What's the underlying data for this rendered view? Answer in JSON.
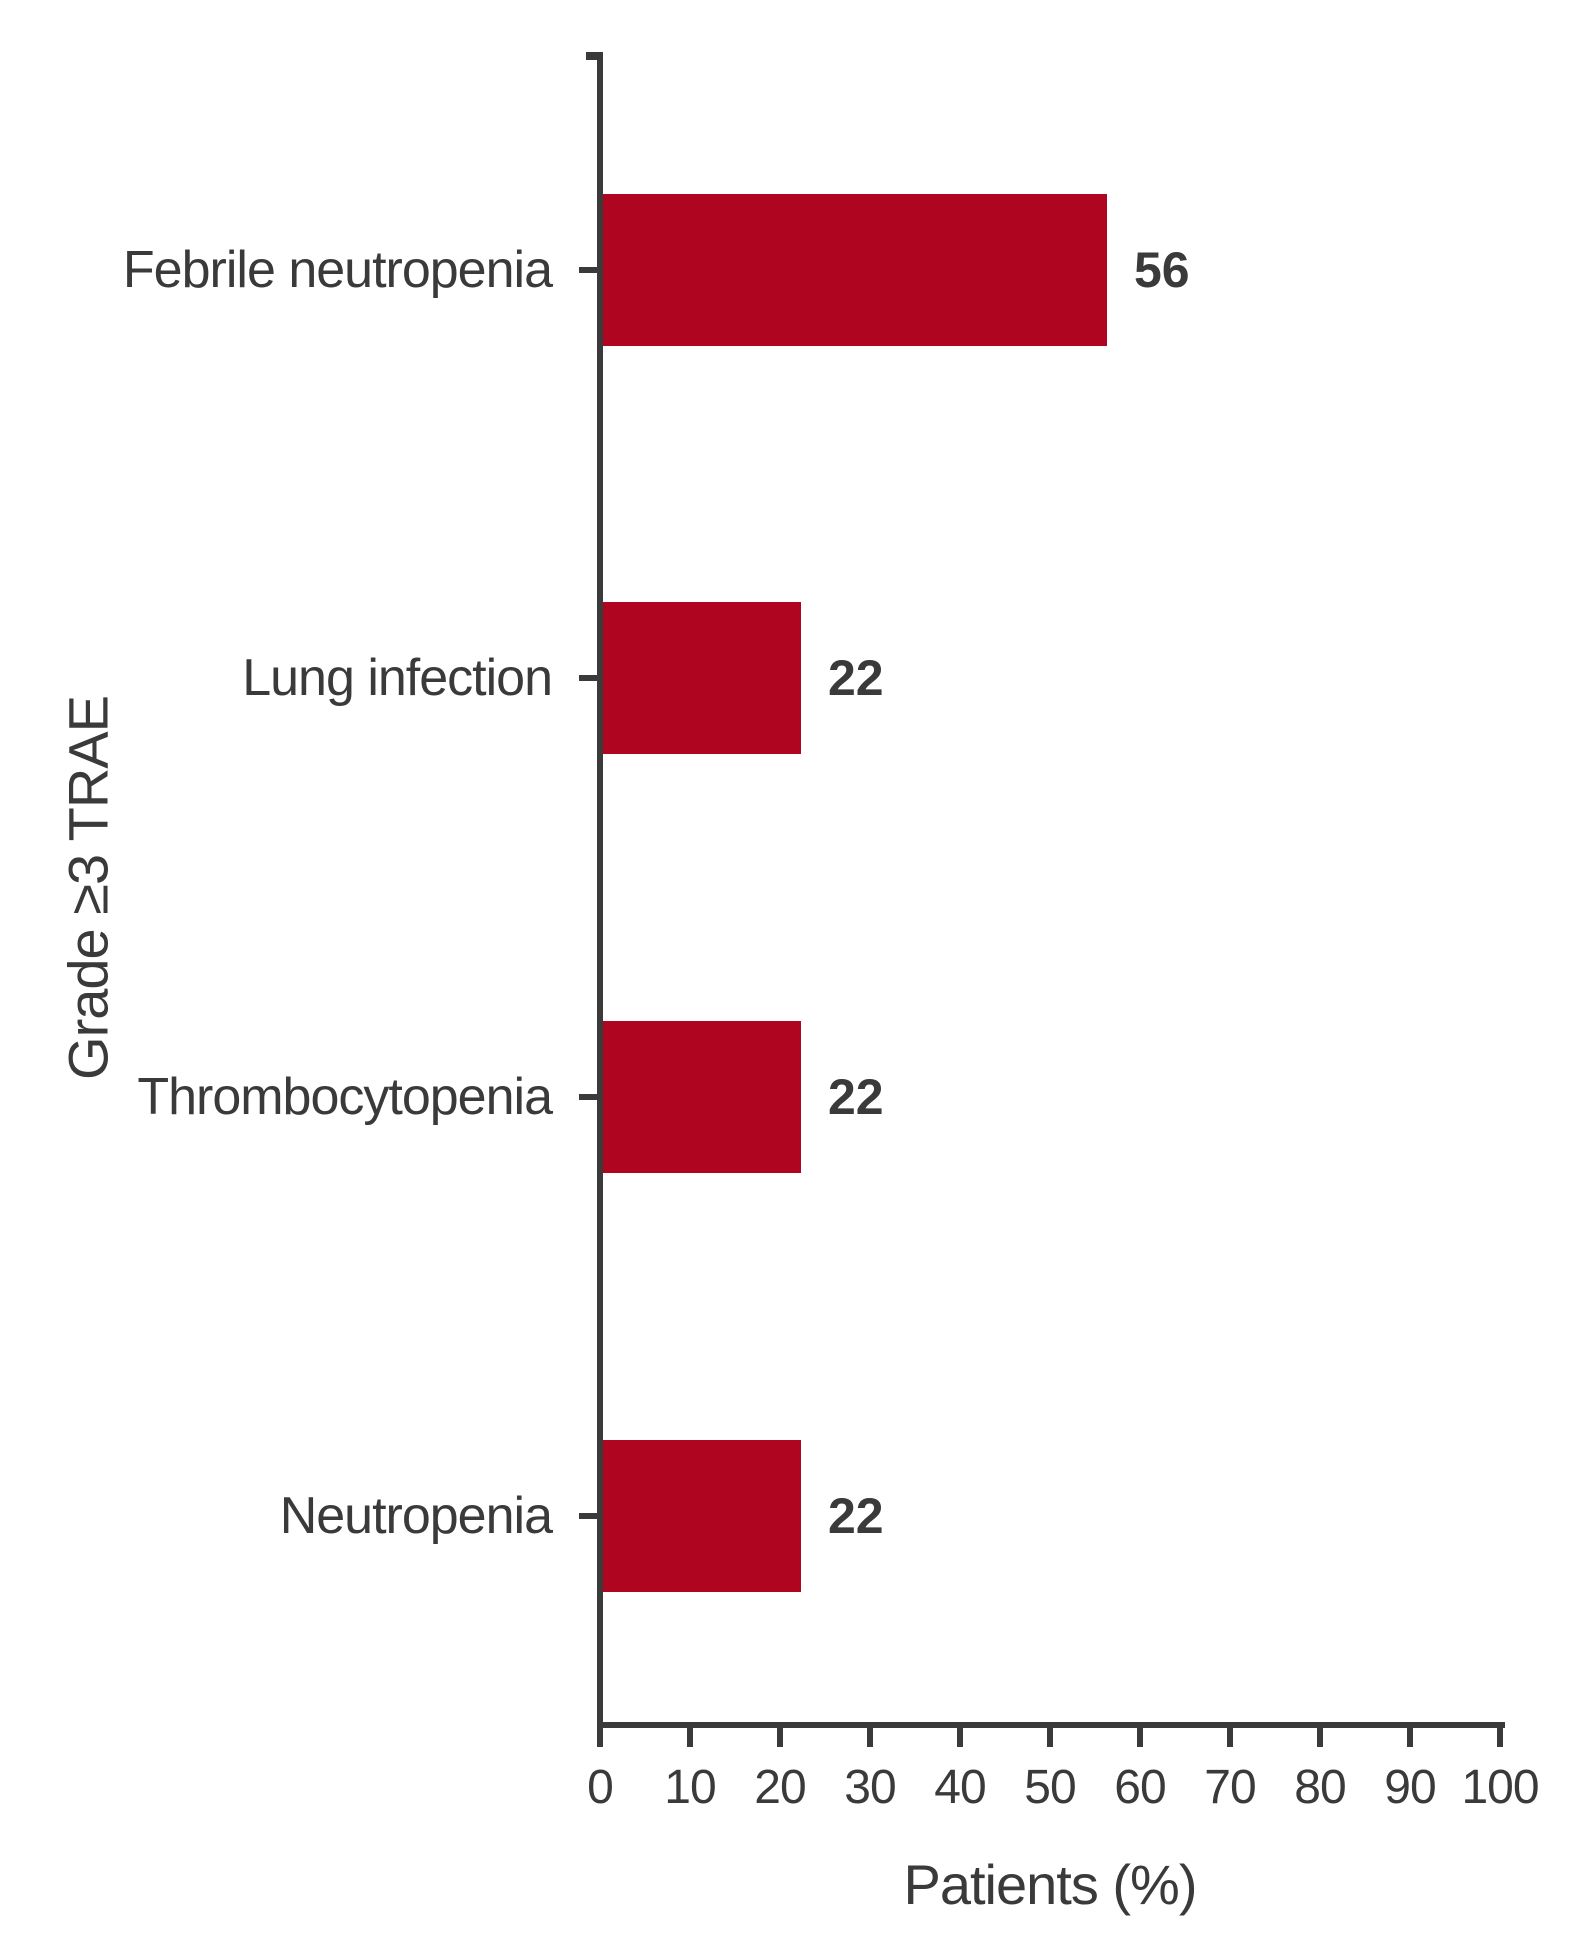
{
  "figure": {
    "background": "#ffffff",
    "text_color": "#3a3a3a",
    "axis_color": "#3a3a3a",
    "bar_color": "#b00520"
  },
  "chart_data": {
    "type": "bar",
    "orientation": "horizontal",
    "title": "",
    "xlabel": "Patients (%)",
    "ylabel": "Grade ≥3 TRAE",
    "categories": [
      "Febrile neutropenia",
      "Lung infection",
      "Thrombocytopenia",
      "Neutropenia"
    ],
    "values": [
      56,
      22,
      22,
      22
    ],
    "value_labels": [
      "56",
      "22",
      "22",
      "22"
    ],
    "xlim": [
      0,
      100
    ],
    "x_ticks": [
      0,
      10,
      20,
      30,
      40,
      50,
      60,
      70,
      80,
      90,
      100
    ],
    "grid": false,
    "legend": null
  }
}
